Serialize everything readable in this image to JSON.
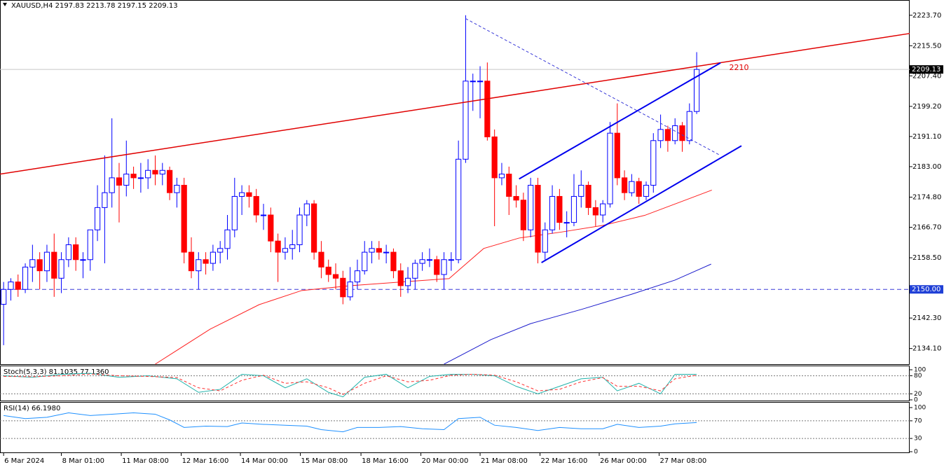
{
  "chart_data": {
    "type": "candlestick",
    "title": "XAUUSD,H4  2197.83 2213.78 2197.15 2209.13",
    "bull_color": "#0000ff",
    "bear_color": "#ff0000",
    "xlim": [
      -0.5,
      125.5
    ],
    "ylim": [
      2129.9,
      2227.8
    ],
    "yticks": [
      {
        "value": 2223.7,
        "label": "2223.70"
      },
      {
        "value": 2215.5,
        "label": "2215.50"
      },
      {
        "value": 2207.4,
        "label": "2207.40"
      },
      {
        "value": 2199.2,
        "label": "2199.20"
      },
      {
        "value": 2191.1,
        "label": "2191.10"
      },
      {
        "value": 2183,
        "label": "2183.00"
      },
      {
        "value": 2174.8,
        "label": "2174.80"
      },
      {
        "value": 2166.7,
        "label": "2166.70"
      },
      {
        "value": 2158.5,
        "label": "2158.50"
      },
      {
        "value": 2142.3,
        "label": "2142.30"
      },
      {
        "value": 2134.1,
        "label": "2134.10"
      }
    ],
    "xticks": [
      {
        "value": 0,
        "label": "6 Mar 2024"
      },
      {
        "value": 8,
        "label": "8 Mar 01:00"
      },
      {
        "value": 16.3,
        "label": "11 Mar 08:00"
      },
      {
        "value": 24.6,
        "label": "12 Mar 16:00"
      },
      {
        "value": 32.8,
        "label": "14 Mar 00:00"
      },
      {
        "value": 41.1,
        "label": "15 Mar 08:00"
      },
      {
        "value": 49.5,
        "label": "18 Mar 16:00"
      },
      {
        "value": 57.8,
        "label": "20 Mar 00:00"
      },
      {
        "value": 66,
        "label": "21 Mar 08:00"
      },
      {
        "value": 74.3,
        "label": "22 Mar 16:00"
      },
      {
        "value": 82.5,
        "label": "26 Mar 00:00"
      },
      {
        "value": 90.8,
        "label": "27 Mar 08:00"
      }
    ],
    "current_price": 2209.13,
    "support_level": {
      "value": 2150,
      "label": "2150.00"
    },
    "candles": [
      [
        2146,
        2152,
        2135,
        2150
      ],
      [
        2150,
        2153,
        2147,
        2152
      ],
      [
        2152,
        2154,
        2148,
        2150
      ],
      [
        2150,
        2157,
        2149,
        2156
      ],
      [
        2156,
        2162,
        2152,
        2158
      ],
      [
        2158,
        2160,
        2150,
        2155
      ],
      [
        2155,
        2162,
        2152,
        2160
      ],
      [
        2160,
        2165,
        2148,
        2153
      ],
      [
        2153,
        2160,
        2149,
        2158
      ],
      [
        2158,
        2164,
        2156,
        2162
      ],
      [
        2162,
        2164,
        2155,
        2158
      ],
      [
        2158,
        2160,
        2153,
        2158
      ],
      [
        2158,
        2166,
        2155,
        2166
      ],
      [
        2166,
        2178,
        2163,
        2172
      ],
      [
        2172,
        2186,
        2157,
        2176
      ],
      [
        2176,
        2196,
        2172,
        2180
      ],
      [
        2180,
        2184,
        2168,
        2178
      ],
      [
        2178,
        2190,
        2175,
        2181
      ],
      [
        2181,
        2183,
        2177,
        2180
      ],
      [
        2180,
        2184,
        2176,
        2180
      ],
      [
        2180,
        2185,
        2177,
        2182
      ],
      [
        2182,
        2186,
        2178,
        2181
      ],
      [
        2181,
        2184,
        2178,
        2182
      ],
      [
        2182,
        2183,
        2174,
        2176
      ],
      [
        2176,
        2180,
        2172,
        2178
      ],
      [
        2178,
        2180,
        2157,
        2160
      ],
      [
        2160,
        2164,
        2153,
        2155
      ],
      [
        2155,
        2160,
        2150,
        2158
      ],
      [
        2158,
        2160,
        2154,
        2157
      ],
      [
        2157,
        2162,
        2155,
        2160
      ],
      [
        2160,
        2163,
        2157,
        2161
      ],
      [
        2161,
        2170,
        2158,
        2166
      ],
      [
        2166,
        2180,
        2164,
        2175
      ],
      [
        2175,
        2178,
        2170,
        2176
      ],
      [
        2176,
        2178,
        2172,
        2175
      ],
      [
        2175,
        2177,
        2168,
        2170
      ],
      [
        2170,
        2173,
        2166,
        2170
      ],
      [
        2170,
        2172,
        2160,
        2163
      ],
      [
        2163,
        2165,
        2152,
        2160
      ],
      [
        2160,
        2164,
        2158,
        2161
      ],
      [
        2161,
        2166,
        2158,
        2162
      ],
      [
        2162,
        2172,
        2160,
        2170
      ],
      [
        2170,
        2174,
        2167,
        2173
      ],
      [
        2173,
        2174,
        2158,
        2160
      ],
      [
        2160,
        2163,
        2153,
        2156
      ],
      [
        2156,
        2158,
        2152,
        2154
      ],
      [
        2154,
        2157,
        2150,
        2153
      ],
      [
        2153,
        2155,
        2146,
        2148
      ],
      [
        2148,
        2156,
        2147,
        2152
      ],
      [
        2152,
        2158,
        2150,
        2155
      ],
      [
        2155,
        2163,
        2154,
        2160
      ],
      [
        2160,
        2163,
        2157,
        2161
      ],
      [
        2161,
        2163,
        2158,
        2160
      ],
      [
        2160,
        2162,
        2157,
        2160
      ],
      [
        2160,
        2161,
        2153,
        2155
      ],
      [
        2155,
        2157,
        2148,
        2151
      ],
      [
        2151,
        2156,
        2149,
        2153
      ],
      [
        2153,
        2158,
        2150,
        2157
      ],
      [
        2157,
        2160,
        2155,
        2158
      ],
      [
        2158,
        2161,
        2156,
        2158
      ],
      [
        2158,
        2159,
        2152,
        2154
      ],
      [
        2154,
        2160,
        2150,
        2158
      ],
      [
        2158,
        2160,
        2155,
        2158
      ],
      [
        2158,
        2190,
        2157,
        2185
      ],
      [
        2185,
        2223.7,
        2184,
        2206
      ],
      [
        2206,
        2208,
        2198,
        2206
      ],
      [
        2206,
        2210,
        2196,
        2206
      ],
      [
        2206,
        2211,
        2190,
        2191
      ],
      [
        2191,
        2193,
        2167,
        2180
      ],
      [
        2180,
        2184,
        2178,
        2181
      ],
      [
        2181,
        2183,
        2170,
        2175
      ],
      [
        2175,
        2178,
        2172,
        2174
      ],
      [
        2174,
        2176,
        2163,
        2166
      ],
      [
        2166,
        2180,
        2164,
        2178
      ],
      [
        2178,
        2180,
        2157,
        2160
      ],
      [
        2160,
        2168,
        2158,
        2166
      ],
      [
        2166,
        2178,
        2165,
        2175
      ],
      [
        2175,
        2177,
        2166,
        2168
      ],
      [
        2168,
        2171,
        2164,
        2168
      ],
      [
        2168,
        2181,
        2167,
        2175
      ],
      [
        2175,
        2182,
        2172,
        2178
      ],
      [
        2178,
        2179,
        2170,
        2172
      ],
      [
        2172,
        2174,
        2167,
        2170
      ],
      [
        2170,
        2174,
        2168,
        2173
      ],
      [
        2173,
        2195,
        2172,
        2192
      ],
      [
        2192,
        2200,
        2178,
        2180
      ],
      [
        2180,
        2182,
        2174,
        2176
      ],
      [
        2176,
        2181,
        2175,
        2179
      ],
      [
        2179,
        2180,
        2173,
        2175
      ],
      [
        2175,
        2179,
        2174,
        2178
      ],
      [
        2178,
        2192,
        2176,
        2190
      ],
      [
        2190,
        2197,
        2188,
        2193
      ],
      [
        2193,
        2194,
        2187,
        2190
      ],
      [
        2190,
        2196,
        2189,
        2194
      ],
      [
        2194,
        2195,
        2187,
        2190
      ],
      [
        2190,
        2200,
        2189,
        2197.83
      ],
      [
        2197.83,
        2213.78,
        2197.15,
        2209.13
      ]
    ],
    "moving_averages": [
      {
        "color": "#ff2020",
        "x": [
          21,
          28.6,
          35.4,
          41.3,
          48.1,
          55.8,
          61.7,
          66.5,
          71.4,
          77.2,
          83,
          88.8,
          94.7,
          98.1
        ],
        "values": [
          2129.9,
          2139.3,
          2145.9,
          2149.7,
          2151,
          2152.1,
          2152.9,
          2161,
          2163.8,
          2165.4,
          2167.2,
          2169.9,
          2174.2,
          2176.7
        ]
      },
      {
        "color": "#1a1acc",
        "x": [
          61,
          67.5,
          73,
          80,
          87,
          93,
          98
        ],
        "values": [
          2129.9,
          2136.5,
          2140.8,
          2144.6,
          2148.7,
          2152.5,
          2156.8
        ]
      }
    ],
    "trend_lines": [
      {
        "color": "#e00000",
        "dashed": false,
        "width": 1.5,
        "x": [
          -0.5,
          125.5
        ],
        "values": [
          2181,
          2218.8
        ]
      },
      {
        "color": "#3a3ad8",
        "dashed": true,
        "width": 1,
        "x": [
          64,
          99.3
        ],
        "values": [
          2222.8,
          2186
        ]
      },
      {
        "color": "#0000ee",
        "dashed": false,
        "width": 2,
        "x": [
          71.4,
          99.3
        ],
        "values": [
          2179.7,
          2210.9
        ]
      },
      {
        "color": "#0000ee",
        "dashed": false,
        "width": 2,
        "x": [
          74.5,
          102.2
        ],
        "values": [
          2157.2,
          2188.6
        ]
      }
    ],
    "annotations": [
      {
        "text": "2210",
        "x": 100.5,
        "value": 2209.5,
        "color": "#e00000"
      }
    ],
    "stoch": {
      "label": "Stoch(5,3,3) 81.1035 77.1360",
      "ylim": [
        0,
        100
      ],
      "yticks": [
        100,
        80,
        20,
        0
      ],
      "series": [
        {
          "color": "#20b2aa",
          "dashed": false,
          "x": [
            0,
            4,
            8,
            12,
            16,
            20,
            24,
            27,
            30,
            33,
            36,
            39,
            42,
            45,
            47,
            50,
            53,
            56,
            59,
            62,
            65,
            68,
            71,
            74,
            77,
            80,
            83,
            85,
            88,
            91,
            93,
            96
          ],
          "values": [
            80,
            75,
            85,
            88,
            75,
            80,
            70,
            25,
            35,
            85,
            80,
            40,
            70,
            25,
            10,
            75,
            85,
            40,
            78,
            85,
            85,
            80,
            45,
            20,
            45,
            70,
            75,
            30,
            55,
            20,
            85,
            85
          ]
        },
        {
          "color": "#ff3030",
          "dashed": true,
          "x": [
            0,
            4,
            8,
            12,
            16,
            20,
            24,
            27,
            30,
            33,
            36,
            39,
            42,
            45,
            47,
            50,
            53,
            56,
            59,
            62,
            65,
            68,
            71,
            74,
            77,
            80,
            83,
            85,
            88,
            91,
            93,
            96
          ],
          "values": [
            78,
            77,
            80,
            86,
            80,
            78,
            74,
            40,
            30,
            65,
            82,
            55,
            60,
            40,
            18,
            55,
            80,
            60,
            65,
            82,
            85,
            82,
            60,
            30,
            35,
            60,
            74,
            45,
            45,
            30,
            70,
            82
          ]
        }
      ]
    },
    "rsi": {
      "label": "RSI(14) 66.1980",
      "ylim": [
        0,
        100
      ],
      "yticks": [
        100,
        70,
        30,
        0
      ],
      "series": [
        {
          "color": "#1e90ff",
          "dashed": false,
          "x": [
            0,
            3,
            6,
            9,
            12,
            15,
            18,
            21,
            23,
            25,
            28,
            31,
            33,
            36,
            39,
            42,
            44,
            47,
            49,
            52,
            55,
            58,
            61,
            63,
            66,
            68,
            71,
            74,
            77,
            80,
            83,
            85,
            88,
            91,
            93,
            96
          ],
          "values": [
            82,
            75,
            78,
            88,
            82,
            85,
            88,
            85,
            72,
            55,
            58,
            57,
            65,
            62,
            60,
            58,
            50,
            45,
            55,
            55,
            57,
            52,
            50,
            75,
            78,
            60,
            55,
            48,
            55,
            52,
            52,
            62,
            55,
            58,
            63,
            66
          ]
        }
      ]
    }
  }
}
